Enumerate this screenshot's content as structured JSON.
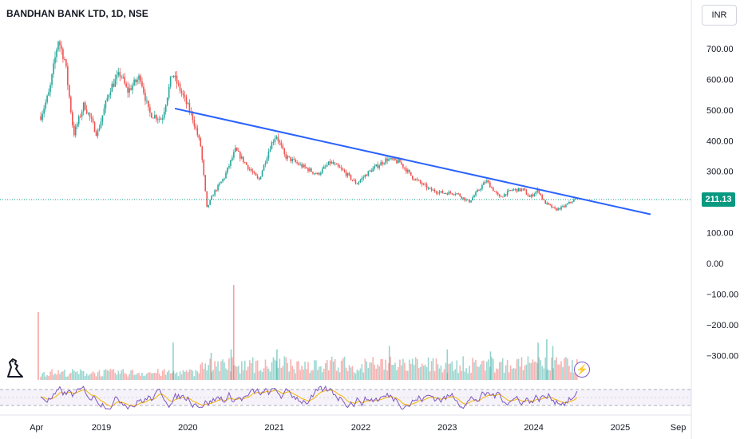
{
  "header": {
    "title": "BANDHAN BANK LTD, 1D, NSE",
    "currency_button": "INR"
  },
  "colors": {
    "up": "#26a69a",
    "down": "#ef5350",
    "trendline": "#2962ff",
    "rsi": "#7e57c2",
    "rsi_ma": "#f5b400",
    "price_line": "#089981",
    "grid": "#f0f3fa"
  },
  "icons": {
    "logo": "tradingview-dino-icon",
    "flash": "lightning-icon"
  },
  "chart_data": {
    "type": "candlestick",
    "title": "BANDHAN BANK LTD, 1D, NSE",
    "currency": "INR",
    "last_price": "211.13",
    "y_ticks": [
      "700.00",
      "600.00",
      "500.00",
      "400.00",
      "300.00",
      "200.00",
      "100.00",
      "0.00",
      "−100.00",
      "−200.00",
      "−300.00"
    ],
    "x_ticks": [
      "Apr",
      "2019",
      "2020",
      "2021",
      "2022",
      "2023",
      "2024",
      "2025",
      "Sep"
    ],
    "price_path": [
      {
        "t": 2018.3,
        "v": 480
      },
      {
        "t": 2018.4,
        "v": 560
      },
      {
        "t": 2018.5,
        "v": 730
      },
      {
        "t": 2018.58,
        "v": 660
      },
      {
        "t": 2018.68,
        "v": 420
      },
      {
        "t": 2018.8,
        "v": 520
      },
      {
        "t": 2018.95,
        "v": 420
      },
      {
        "t": 2019.1,
        "v": 570
      },
      {
        "t": 2019.22,
        "v": 620
      },
      {
        "t": 2019.3,
        "v": 560
      },
      {
        "t": 2019.45,
        "v": 610
      },
      {
        "t": 2019.55,
        "v": 490
      },
      {
        "t": 2019.7,
        "v": 470
      },
      {
        "t": 2019.82,
        "v": 620
      },
      {
        "t": 2019.92,
        "v": 560
      },
      {
        "t": 2020.05,
        "v": 480
      },
      {
        "t": 2020.15,
        "v": 380
      },
      {
        "t": 2020.22,
        "v": 180
      },
      {
        "t": 2020.3,
        "v": 230
      },
      {
        "t": 2020.42,
        "v": 280
      },
      {
        "t": 2020.55,
        "v": 370
      },
      {
        "t": 2020.68,
        "v": 320
      },
      {
        "t": 2020.82,
        "v": 270
      },
      {
        "t": 2020.95,
        "v": 380
      },
      {
        "t": 2021.02,
        "v": 420
      },
      {
        "t": 2021.12,
        "v": 350
      },
      {
        "t": 2021.3,
        "v": 320
      },
      {
        "t": 2021.5,
        "v": 290
      },
      {
        "t": 2021.65,
        "v": 330
      },
      {
        "t": 2021.8,
        "v": 300
      },
      {
        "t": 2021.95,
        "v": 260
      },
      {
        "t": 2022.1,
        "v": 300
      },
      {
        "t": 2022.3,
        "v": 340
      },
      {
        "t": 2022.45,
        "v": 330
      },
      {
        "t": 2022.6,
        "v": 280
      },
      {
        "t": 2022.8,
        "v": 240
      },
      {
        "t": 2022.95,
        "v": 230
      },
      {
        "t": 2023.1,
        "v": 230
      },
      {
        "t": 2023.25,
        "v": 200
      },
      {
        "t": 2023.45,
        "v": 270
      },
      {
        "t": 2023.6,
        "v": 215
      },
      {
        "t": 2023.75,
        "v": 240
      },
      {
        "t": 2023.88,
        "v": 240
      },
      {
        "t": 2023.95,
        "v": 215
      },
      {
        "t": 2024.05,
        "v": 240
      },
      {
        "t": 2024.12,
        "v": 200
      },
      {
        "t": 2024.25,
        "v": 175
      },
      {
        "t": 2024.35,
        "v": 185
      },
      {
        "t": 2024.45,
        "v": 205
      },
      {
        "t": 2024.5,
        "v": 211
      }
    ],
    "trendline": [
      {
        "t": 2019.85,
        "v": 505
      },
      {
        "t": 2025.35,
        "v": 160
      }
    ],
    "volume_spikes": [
      {
        "t": 2018.27,
        "v": 1.0
      },
      {
        "t": 2019.83,
        "v": 0.55
      },
      {
        "t": 2020.27,
        "v": 0.4
      },
      {
        "t": 2020.53,
        "v": 1.4
      },
      {
        "t": 2020.5,
        "v": 0.45
      },
      {
        "t": 2021.03,
        "v": 0.45
      },
      {
        "t": 2022.33,
        "v": 0.5
      },
      {
        "t": 2023.0,
        "v": 0.45
      },
      {
        "t": 2023.5,
        "v": 0.42
      },
      {
        "t": 2024.05,
        "v": 0.55
      },
      {
        "t": 2024.15,
        "v": 0.6
      },
      {
        "t": 2024.22,
        "v": 0.5
      }
    ],
    "rsi_bands": {
      "upper": 70,
      "lower": 30
    }
  }
}
